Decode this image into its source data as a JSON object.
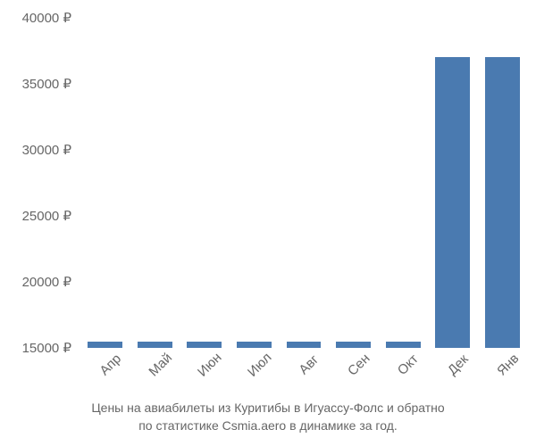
{
  "chart": {
    "type": "bar",
    "background_color": "#ffffff",
    "bar_color": "#4a7ab0",
    "text_color": "#666666",
    "label_fontsize": 15,
    "caption_fontsize": 14,
    "bar_width": 0.7,
    "currency_symbol": "₽",
    "ylim": [
      15000,
      40000
    ],
    "yticks": [
      15000,
      20000,
      25000,
      30000,
      35000,
      40000
    ],
    "ytick_labels": [
      "15000 ₽",
      "20000 ₽",
      "25000 ₽",
      "30000 ₽",
      "35000 ₽",
      "40000 ₽"
    ],
    "categories": [
      "Апр",
      "Май",
      "Июн",
      "Июл",
      "Авг",
      "Сен",
      "Окт",
      "Дек",
      "Янв"
    ],
    "values": [
      15500,
      15500,
      15500,
      15500,
      15500,
      15500,
      15500,
      37000,
      37000
    ],
    "x_label_rotation": -45,
    "caption_line1": "Цены на авиабилеты из Куритибы в Игуассу-Фолс и обратно",
    "caption_line2": "по статистике Csmia.aero в динамике за год."
  }
}
